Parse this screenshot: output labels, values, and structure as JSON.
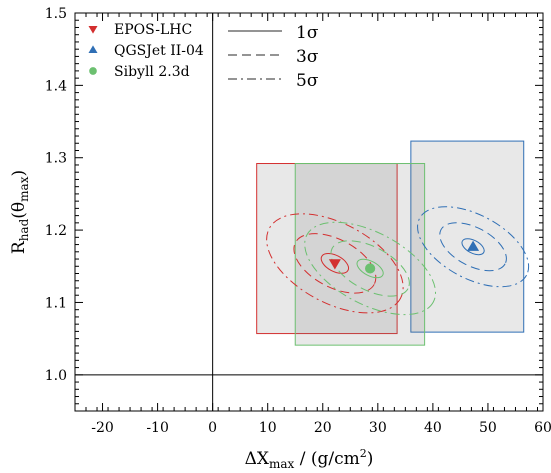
{
  "chart_data": {
    "type": "scatter",
    "xlabel": "ΔX",
    "xlabel_sub": "max",
    "xlabel_unit": " / (g/cm",
    "xlabel_sup": "2",
    "xlabel_close": ")",
    "ylabel": "R",
    "ylabel_sub": "had",
    "ylabel_arg": "(θ",
    "ylabel_arg_sub": "max",
    "ylabel_close": ")",
    "xlim": [
      -25,
      60
    ],
    "ylim": [
      0.95,
      1.5
    ],
    "xticks": [
      -20,
      -10,
      0,
      10,
      20,
      30,
      40,
      50,
      60
    ],
    "yticks": [
      1.0,
      1.1,
      1.2,
      1.3,
      1.4,
      1.5
    ],
    "ref_lines": {
      "x": 0,
      "y": 1.0
    },
    "series": [
      {
        "name": "EPOS-LHC",
        "color": "#d32f2f",
        "marker": "triangle-down",
        "x": 22.2,
        "y": 1.154,
        "sigma": {
          "sx": 2.7,
          "sy": 0.02
        },
        "box": {
          "x0": 8,
          "x1": 33.5,
          "y0": 1.057,
          "y1": 1.292
        }
      },
      {
        "name": "QGSJet II-04",
        "color": "#2f6fb5",
        "marker": "triangle-up",
        "x": 47.3,
        "y": 1.177,
        "sigma": {
          "sx": 2.2,
          "sy": 0.016
        },
        "box": {
          "x0": 36,
          "x1": 56.5,
          "y0": 1.059,
          "y1": 1.323
        }
      },
      {
        "name": "Sibyll 2.3d",
        "color": "#6cc070",
        "marker": "circle",
        "x": 28.6,
        "y": 1.147,
        "sigma": {
          "sx": 2.6,
          "sy": 0.018
        },
        "box": {
          "x0": 15,
          "x1": 38.5,
          "y0": 1.041,
          "y1": 1.292
        }
      }
    ],
    "contour_legend": [
      {
        "label": "1σ",
        "style": "solid"
      },
      {
        "label": "3σ",
        "style": "dashed"
      },
      {
        "label": "5σ",
        "style": "dashdot"
      }
    ]
  }
}
